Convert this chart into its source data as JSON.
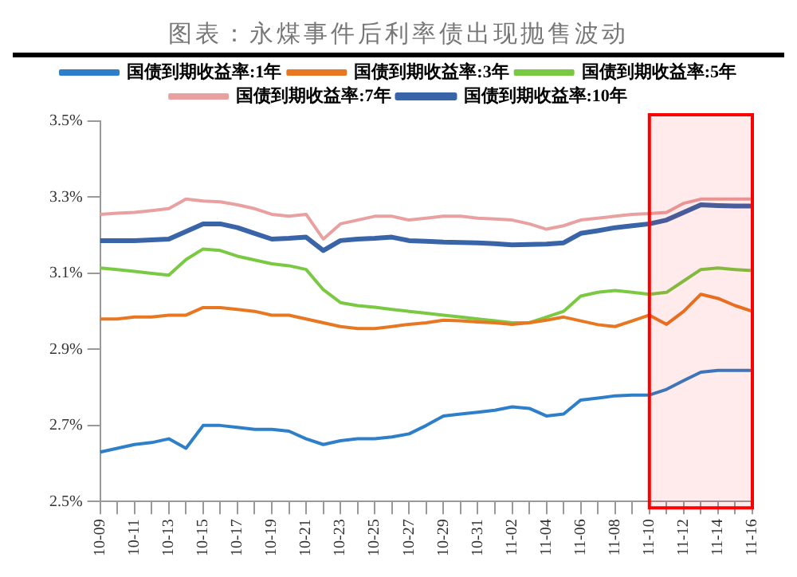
{
  "chart_data": {
    "type": "line",
    "title": "图表：永煤事件后利率债出现抛售波动",
    "categories": [
      "10-09",
      null,
      "10-11",
      null,
      "10-13",
      null,
      "10-15",
      null,
      "10-17",
      null,
      "10-19",
      null,
      "10-21",
      null,
      "10-23",
      null,
      "10-25",
      null,
      "10-27",
      null,
      "10-29",
      null,
      "10-31",
      null,
      "11-02",
      null,
      "11-04",
      null,
      "11-06",
      null,
      "11-08",
      null,
      "11-10",
      null,
      "11-12",
      null,
      "11-14",
      null,
      "11-16"
    ],
    "series": [
      {
        "name": "国债到期收益率:1年",
        "color": "#2e7fc9",
        "values": [
          2.63,
          2.64,
          2.65,
          2.655,
          2.665,
          2.64,
          2.7,
          2.7,
          2.695,
          2.69,
          2.69,
          2.685,
          2.665,
          2.65,
          2.66,
          2.665,
          2.665,
          2.67,
          2.678,
          2.7,
          2.725,
          2.73,
          2.735,
          2.74,
          2.749,
          2.745,
          2.725,
          2.73,
          2.767,
          2.772,
          2.778,
          2.78,
          2.78,
          2.795,
          2.818,
          2.84,
          2.845,
          2.845,
          2.845
        ]
      },
      {
        "name": "国债到期收益率:3年",
        "color": "#e87722",
        "values": [
          2.98,
          2.98,
          2.985,
          2.985,
          2.99,
          2.99,
          3.01,
          3.01,
          3.005,
          3.0,
          2.99,
          2.99,
          2.98,
          2.97,
          2.96,
          2.955,
          2.955,
          2.96,
          2.966,
          2.97,
          2.977,
          2.975,
          2.972,
          2.97,
          2.966,
          2.97,
          2.977,
          2.985,
          2.975,
          2.965,
          2.96,
          2.975,
          2.99,
          2.966,
          3.0,
          3.045,
          3.034,
          3.015,
          3.0
        ]
      },
      {
        "name": "国债到期收益率:5年",
        "color": "#7ac943",
        "values": [
          3.114,
          3.11,
          3.105,
          3.1,
          3.095,
          3.136,
          3.164,
          3.16,
          3.145,
          3.135,
          3.125,
          3.12,
          3.11,
          3.057,
          3.023,
          3.015,
          3.011,
          3.005,
          3.0,
          2.995,
          2.99,
          2.985,
          2.98,
          2.975,
          2.97,
          2.97,
          2.985,
          3.0,
          3.04,
          3.05,
          3.055,
          3.05,
          3.045,
          3.05,
          3.08,
          3.11,
          3.114,
          3.11,
          3.107
        ]
      },
      {
        "name": "国债到期收益率:7年",
        "color": "#e8a0a0",
        "values": [
          3.255,
          3.258,
          3.26,
          3.265,
          3.27,
          3.295,
          3.29,
          3.288,
          3.28,
          3.27,
          3.255,
          3.25,
          3.255,
          3.19,
          3.23,
          3.24,
          3.25,
          3.25,
          3.24,
          3.245,
          3.25,
          3.25,
          3.245,
          3.243,
          3.24,
          3.23,
          3.216,
          3.225,
          3.24,
          3.245,
          3.25,
          3.255,
          3.257,
          3.26,
          3.284,
          3.295,
          3.295,
          3.295,
          3.295
        ]
      },
      {
        "name": "国债到期收益率:10年",
        "color": "#3a64a8",
        "values": [
          3.186,
          3.186,
          3.186,
          3.188,
          3.19,
          3.21,
          3.23,
          3.23,
          3.22,
          3.205,
          3.19,
          3.192,
          3.195,
          3.16,
          3.186,
          3.19,
          3.192,
          3.195,
          3.186,
          3.184,
          3.182,
          3.181,
          3.18,
          3.178,
          3.175,
          3.176,
          3.177,
          3.18,
          3.205,
          3.212,
          3.22,
          3.225,
          3.23,
          3.24,
          3.26,
          3.28,
          3.278,
          3.277,
          3.277
        ]
      }
    ],
    "ylim": [
      2.5,
      3.5
    ],
    "yticks": [
      {
        "value": 2.5,
        "label": "2.5%"
      },
      {
        "value": 2.7,
        "label": "2.7%"
      },
      {
        "value": 2.9,
        "label": "2.9%"
      },
      {
        "value": 3.1,
        "label": "3.1%"
      },
      {
        "value": 3.3,
        "label": "3.3%"
      },
      {
        "value": 3.5,
        "label": "3.5%"
      }
    ],
    "bands": [
      {
        "axis": "x",
        "from": "11-10",
        "to": "11-16",
        "color": "#ff0000"
      }
    ],
    "grid": false,
    "legend": "top",
    "marker": "none",
    "line_style": "solid"
  }
}
